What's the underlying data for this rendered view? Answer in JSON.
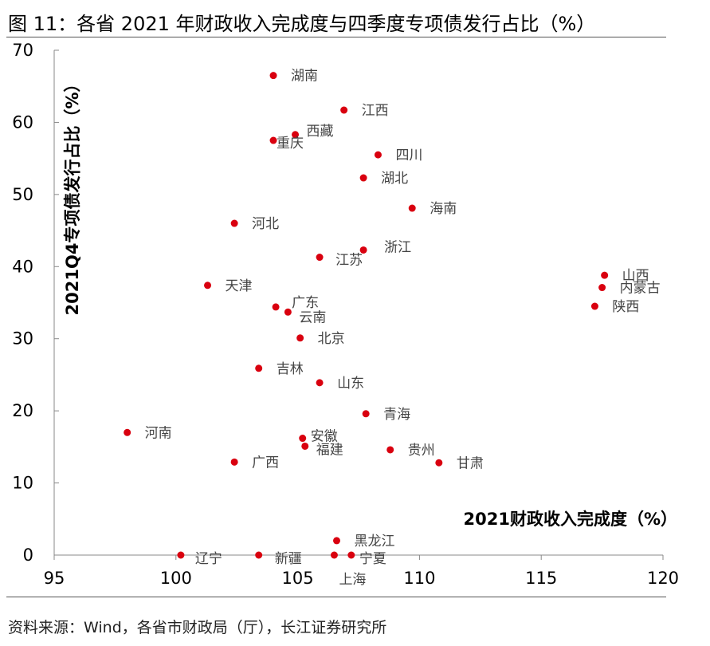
{
  "figure": {
    "title": "图 11：各省 2021 年财政收入完成度与四季度专项债发行占比（%）",
    "source": "资料来源：Wind，各省市财政局（厅），长江证券研究所"
  },
  "colors": {
    "point": "#d9000f",
    "axis": "#888888",
    "label": "#444444"
  },
  "chart_data": {
    "type": "scatter",
    "title": "各省 2021 年财政收入完成度与四季度专项债发行占比（%）",
    "xlabel": "2021财政收入完成度（%）",
    "ylabel": "2021Q4专项债发行占比（%）",
    "xlim": [
      95,
      120
    ],
    "ylim": [
      0,
      70
    ],
    "xticks": [
      95,
      100,
      105,
      110,
      115,
      120
    ],
    "yticks": [
      0,
      10,
      20,
      30,
      40,
      50,
      60,
      70
    ],
    "grid": false,
    "points": [
      {
        "name": "湖南",
        "x": 104.0,
        "y": 66.5
      },
      {
        "name": "江西",
        "x": 106.9,
        "y": 61.7
      },
      {
        "name": "西藏",
        "x": 104.9,
        "y": 58.3
      },
      {
        "name": "重庆",
        "x": 104.0,
        "y": 57.5
      },
      {
        "name": "四川",
        "x": 108.3,
        "y": 55.5
      },
      {
        "name": "湖北",
        "x": 107.7,
        "y": 52.3
      },
      {
        "name": "海南",
        "x": 109.7,
        "y": 48.1
      },
      {
        "name": "河北",
        "x": 102.4,
        "y": 46.0
      },
      {
        "name": "浙江",
        "x": 107.7,
        "y": 42.3
      },
      {
        "name": "江苏",
        "x": 105.9,
        "y": 41.3
      },
      {
        "name": "山西",
        "x": 117.6,
        "y": 38.8
      },
      {
        "name": "内蒙古",
        "x": 117.5,
        "y": 37.1
      },
      {
        "name": "天津",
        "x": 101.3,
        "y": 37.4
      },
      {
        "name": "陕西",
        "x": 117.2,
        "y": 34.5
      },
      {
        "name": "广东",
        "x": 104.1,
        "y": 34.4
      },
      {
        "name": "云南",
        "x": 104.6,
        "y": 33.7
      },
      {
        "name": "北京",
        "x": 105.1,
        "y": 30.1
      },
      {
        "name": "吉林",
        "x": 103.4,
        "y": 25.9
      },
      {
        "name": "山东",
        "x": 105.9,
        "y": 23.9
      },
      {
        "name": "青海",
        "x": 107.8,
        "y": 19.6
      },
      {
        "name": "河南",
        "x": 98.0,
        "y": 17.0
      },
      {
        "name": "安徽",
        "x": 105.2,
        "y": 16.2
      },
      {
        "name": "福建",
        "x": 105.3,
        "y": 15.1
      },
      {
        "name": "贵州",
        "x": 108.8,
        "y": 14.6
      },
      {
        "name": "广西",
        "x": 102.4,
        "y": 12.9
      },
      {
        "name": "甘肃",
        "x": 110.8,
        "y": 12.8
      },
      {
        "name": "黑龙江",
        "x": 106.6,
        "y": 2.0
      },
      {
        "name": "辽宁",
        "x": 100.2,
        "y": 0.0
      },
      {
        "name": "新疆",
        "x": 103.4,
        "y": 0.0
      },
      {
        "name": "上海",
        "x": 106.5,
        "y": 0.0
      },
      {
        "name": "宁夏",
        "x": 107.2,
        "y": 0.0
      }
    ]
  }
}
